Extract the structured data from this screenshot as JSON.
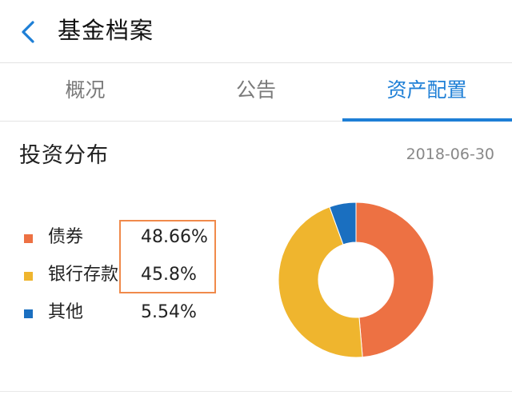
{
  "header": {
    "title": "基金档案",
    "back_icon": "chevron-left-icon"
  },
  "tabs": [
    {
      "label": "概况",
      "active": false
    },
    {
      "label": "公告",
      "active": false
    },
    {
      "label": "资产配置",
      "active": true
    }
  ],
  "section": {
    "title": "投资分布",
    "date": "2018-06-30"
  },
  "colors": {
    "accent": "#1e7fd6",
    "bond": "#ed7143",
    "bank_deposit": "#efb52e",
    "other": "#1a6fc0"
  },
  "chart_data": {
    "type": "pie",
    "categories": [
      "债券",
      "银行存款",
      "其他"
    ],
    "values": [
      48.66,
      45.8,
      5.54
    ],
    "value_labels": [
      "48.66%",
      "45.8%",
      "5.54%"
    ],
    "colors": [
      "#ed7143",
      "#efb52e",
      "#1a6fc0"
    ],
    "donut": true
  }
}
